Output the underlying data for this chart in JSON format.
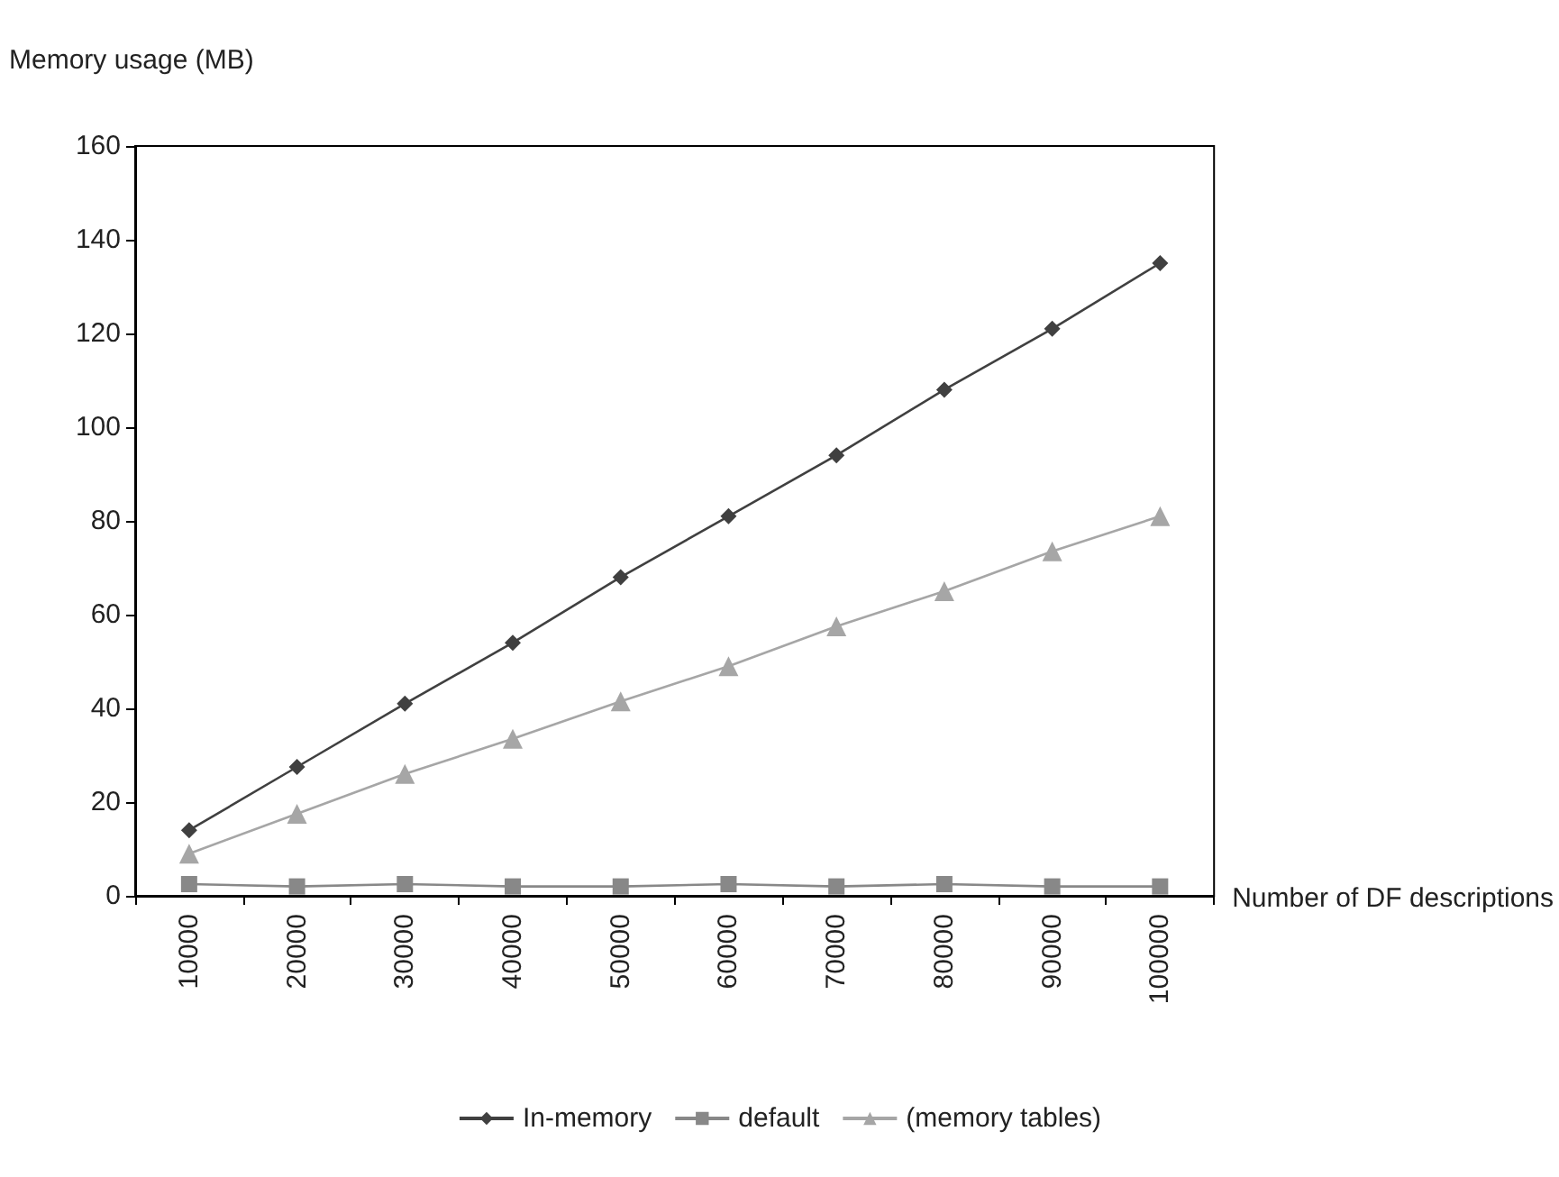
{
  "chart_data": {
    "type": "line",
    "ylabel": "Memory usage (MB)",
    "xlabel": "Number of DF descriptions",
    "categories": [
      "10000",
      "20000",
      "30000",
      "40000",
      "50000",
      "60000",
      "70000",
      "80000",
      "90000",
      "100000"
    ],
    "series": [
      {
        "name": "In-memory",
        "color": "#404040",
        "marker": "diamond",
        "values": [
          14,
          27.5,
          41,
          54,
          68,
          81,
          94,
          108,
          121,
          135
        ]
      },
      {
        "name": "default",
        "color": "#888888",
        "marker": "square",
        "values": [
          2.5,
          2,
          2.5,
          2,
          2,
          2.5,
          2,
          2.5,
          2,
          2
        ]
      },
      {
        "name": "(memory tables)",
        "color": "#a6a6a6",
        "marker": "triangle",
        "values": [
          9,
          17.5,
          26,
          33.5,
          41.5,
          49,
          57.5,
          65,
          73.5,
          81
        ]
      }
    ],
    "ylim": [
      0,
      160
    ],
    "yticks": [
      0,
      20,
      40,
      60,
      80,
      100,
      120,
      140,
      160
    ],
    "grid": false,
    "legend": "bottom",
    "line_style": "solid"
  }
}
